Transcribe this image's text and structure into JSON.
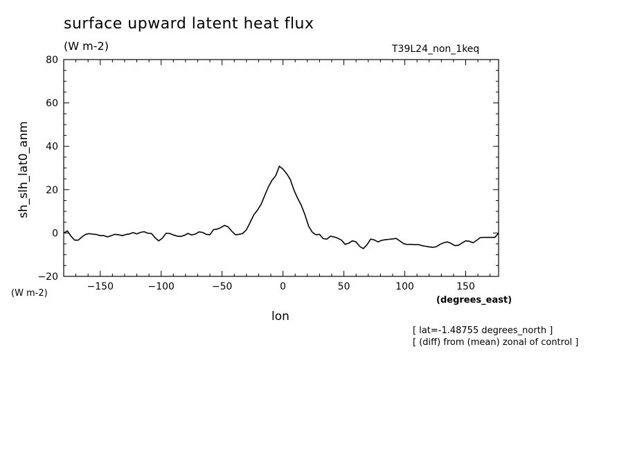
{
  "chart_data": {
    "type": "line",
    "title": "surface upward latent heat flux",
    "units": "(W m-2)",
    "experiment": "T39L24_non_1keq",
    "ylabel": "sh_slh_lat0_anm",
    "yunits": "(W m-2)",
    "xlabel": "lon",
    "xunits": "(degrees_east)",
    "notes": [
      "[ lat=-1.48755 degrees_north ]",
      "[ (diff) from (mean) zonal of control ]"
    ],
    "xlim": [
      -180,
      177
    ],
    "ylim": [
      -20,
      80
    ],
    "xticks": [
      -150,
      -100,
      -50,
      0,
      50,
      100,
      150
    ],
    "xtick_labels": [
      "−150",
      "−100",
      "−50",
      "0",
      "50",
      "100",
      "150"
    ],
    "yticks": [
      -20,
      0,
      20,
      40,
      60,
      80
    ],
    "ytick_labels": [
      "−20",
      "0",
      "20",
      "40",
      "60",
      "80"
    ],
    "grid": false,
    "series": [
      {
        "x": [
          -180,
          -177,
          -174,
          -171,
          -168,
          -165,
          -162,
          -159,
          -156,
          -153,
          -150,
          -147,
          -144,
          -141,
          -138,
          -135,
          -132,
          -129,
          -126,
          -123,
          -120,
          -117,
          -114,
          -111,
          -108,
          -105,
          -102,
          -99,
          -96,
          -93,
          -90,
          -87,
          -84,
          -81,
          -78,
          -75,
          -72,
          -69,
          -66,
          -63,
          -60,
          -57,
          -54,
          -51,
          -48,
          -45,
          -42,
          -39,
          -36,
          -33,
          -30,
          -27,
          -24,
          -21,
          -18,
          -15,
          -12,
          -9,
          -6,
          -3,
          0,
          3,
          6,
          9,
          12,
          15,
          18,
          21,
          24,
          27,
          30,
          33,
          36,
          39,
          42,
          45,
          48,
          51,
          54,
          57,
          60,
          63,
          66,
          69,
          72,
          75,
          78,
          81,
          84,
          87,
          90,
          93,
          96,
          99,
          102,
          105,
          108,
          111,
          114,
          117,
          120,
          123,
          126,
          129,
          132,
          135,
          138,
          141,
          144,
          147,
          150,
          153,
          156,
          159,
          162,
          165,
          168,
          171,
          174,
          177
        ],
        "y": [
          0,
          1,
          -1.5,
          -3.3,
          -3.3,
          -1.8,
          -0.6,
          -0.3,
          -0.5,
          -0.7,
          -1.2,
          -1.2,
          -1.8,
          -1.2,
          -0.6,
          -0.8,
          -1.2,
          -0.7,
          -0.4,
          0.2,
          -0.4,
          0.3,
          0.6,
          -0.1,
          -0.2,
          -2.2,
          -3.6,
          -2.4,
          -0.1,
          -0.2,
          -0.9,
          -1.4,
          -1.6,
          -1.1,
          -0.2,
          -0.9,
          -0.5,
          0.5,
          0.3,
          -0.6,
          -0.8,
          1.6,
          1.8,
          2.5,
          3.5,
          2.8,
          0.8,
          -0.8,
          -0.6,
          -0.2,
          1.5,
          4.8,
          8.3,
          10.5,
          13.2,
          17.3,
          21.2,
          24.3,
          26.4,
          30.8,
          29.5,
          27.4,
          24.7,
          19.8,
          16.1,
          12.8,
          8.5,
          3.2,
          0.4,
          -0.8,
          -0.6,
          -2.6,
          -2.8,
          -1.5,
          -1.8,
          -2.4,
          -3.3,
          -5.2,
          -4.7,
          -3.6,
          -4.1,
          -6.2,
          -7.2,
          -5.4,
          -2.8,
          -3.2,
          -4.1,
          -3.4,
          -3.1,
          -2.9,
          -2.7,
          -2.5,
          -3.7,
          -4.9,
          -5.3,
          -5.2,
          -5.4,
          -5.3,
          -5.8,
          -6.1,
          -6.4,
          -6.6,
          -6.3,
          -5.2,
          -4.5,
          -4.1,
          -4.8,
          -5.8,
          -5.7,
          -4.6,
          -3.6,
          -3.8,
          -4.5,
          -3.4,
          -2.1,
          -2.0,
          -2.0,
          -2.0,
          -2.0,
          0
        ]
      }
    ]
  }
}
